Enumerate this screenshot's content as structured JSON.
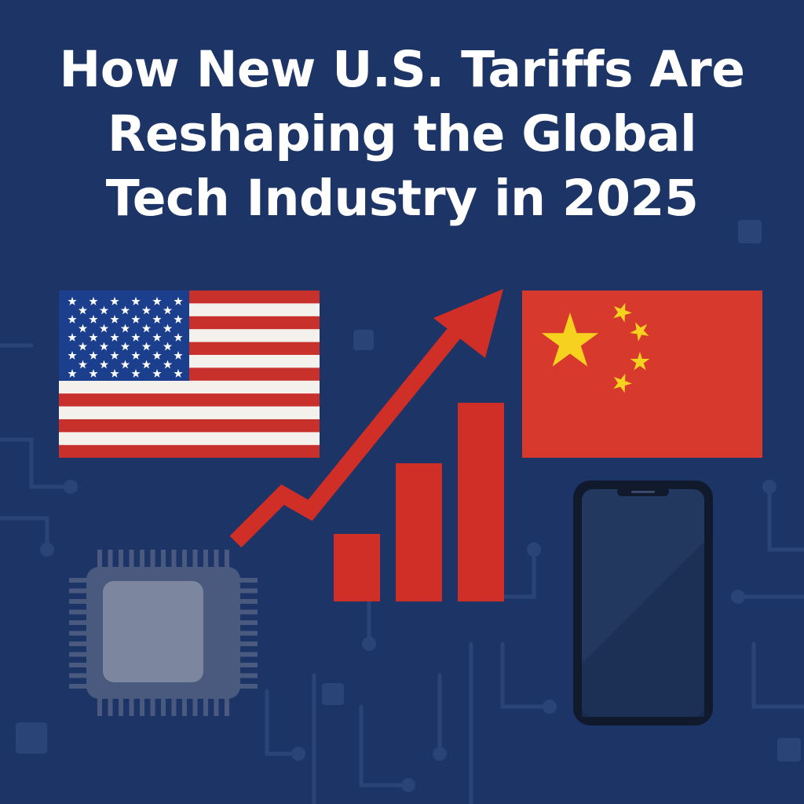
{
  "headline": {
    "line1": "How New U.S. Tariffs Are",
    "line2": "Reshaping the Global",
    "line3": "Tech Industry in 2025"
  },
  "colors": {
    "background": "#1d3466",
    "circuit": "#2a4478",
    "flag_red": "#c8302b",
    "flag_blue": "#1b3f8c",
    "flag_white": "#f4f1ec",
    "china_red": "#d73a2d",
    "china_star": "#f6d21f",
    "chart_red": "#cf2f27",
    "chip_body": "#4a5a7e",
    "chip_core": "#7c879f",
    "phone_frame": "#101a2c",
    "phone_screen": "#22385f"
  },
  "icons": [
    "us-flag-icon",
    "china-flag-icon",
    "trend-arrow-icon",
    "bar-chart-icon",
    "microchip-icon",
    "smartphone-icon"
  ]
}
